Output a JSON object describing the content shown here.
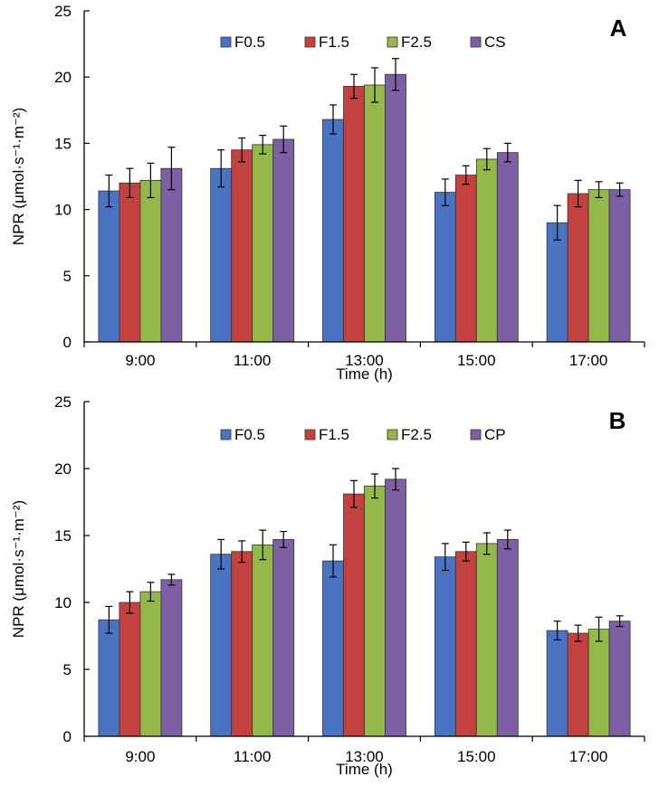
{
  "chart_data": [
    {
      "type": "bar",
      "panel_label": "A",
      "categories": [
        "9:00",
        "11:00",
        "13:00",
        "15:00",
        "17:00"
      ],
      "xlabel": "Time  (h)",
      "ylabel": "NPR (μmol·s⁻¹·m⁻²)",
      "ylim": [
        0,
        25
      ],
      "yticks": [
        0,
        5,
        10,
        15,
        20,
        25
      ],
      "grid": false,
      "legend": "top-center",
      "series": [
        {
          "name": "F0.5",
          "color": "#4a74c2",
          "values": [
            11.4,
            13.1,
            16.8,
            11.3,
            9.0
          ],
          "errors": [
            1.2,
            1.4,
            1.1,
            1.0,
            1.3
          ]
        },
        {
          "name": "F1.5",
          "color": "#c3423f",
          "values": [
            12.0,
            14.5,
            19.3,
            12.6,
            11.2
          ],
          "errors": [
            1.1,
            0.9,
            0.9,
            0.7,
            1.0
          ]
        },
        {
          "name": "F2.5",
          "color": "#94b84a",
          "values": [
            12.2,
            14.9,
            19.4,
            13.8,
            11.5
          ],
          "errors": [
            1.3,
            0.7,
            1.3,
            0.8,
            0.6
          ]
        },
        {
          "name": "CS",
          "color": "#7d5fa3",
          "values": [
            13.1,
            15.3,
            20.2,
            14.3,
            11.5
          ],
          "errors": [
            1.6,
            1.0,
            1.2,
            0.7,
            0.5
          ]
        }
      ]
    },
    {
      "type": "bar",
      "panel_label": "B",
      "categories": [
        "9:00",
        "11:00",
        "13:00",
        "15:00",
        "17:00"
      ],
      "xlabel": "Time  (h)",
      "ylabel": "NPR (μmol·s⁻¹·m⁻²)",
      "ylim": [
        0,
        25
      ],
      "yticks": [
        0,
        5,
        10,
        15,
        20,
        25
      ],
      "grid": false,
      "legend": "top-center",
      "series": [
        {
          "name": "F0.5",
          "color": "#4a74c2",
          "values": [
            8.7,
            13.6,
            13.1,
            13.4,
            7.9
          ],
          "errors": [
            1.0,
            1.1,
            1.2,
            1.0,
            0.7
          ]
        },
        {
          "name": "F1.5",
          "color": "#c3423f",
          "values": [
            10.0,
            13.8,
            18.1,
            13.8,
            7.7
          ],
          "errors": [
            0.8,
            0.8,
            1.0,
            0.7,
            0.6
          ]
        },
        {
          "name": "F2.5",
          "color": "#94b84a",
          "values": [
            10.8,
            14.3,
            18.7,
            14.4,
            8.0
          ],
          "errors": [
            0.7,
            1.1,
            0.9,
            0.8,
            0.9
          ]
        },
        {
          "name": "CP",
          "color": "#7d5fa3",
          "values": [
            11.7,
            14.7,
            19.2,
            14.7,
            8.6
          ],
          "errors": [
            0.4,
            0.6,
            0.8,
            0.7,
            0.4
          ]
        }
      ]
    }
  ]
}
